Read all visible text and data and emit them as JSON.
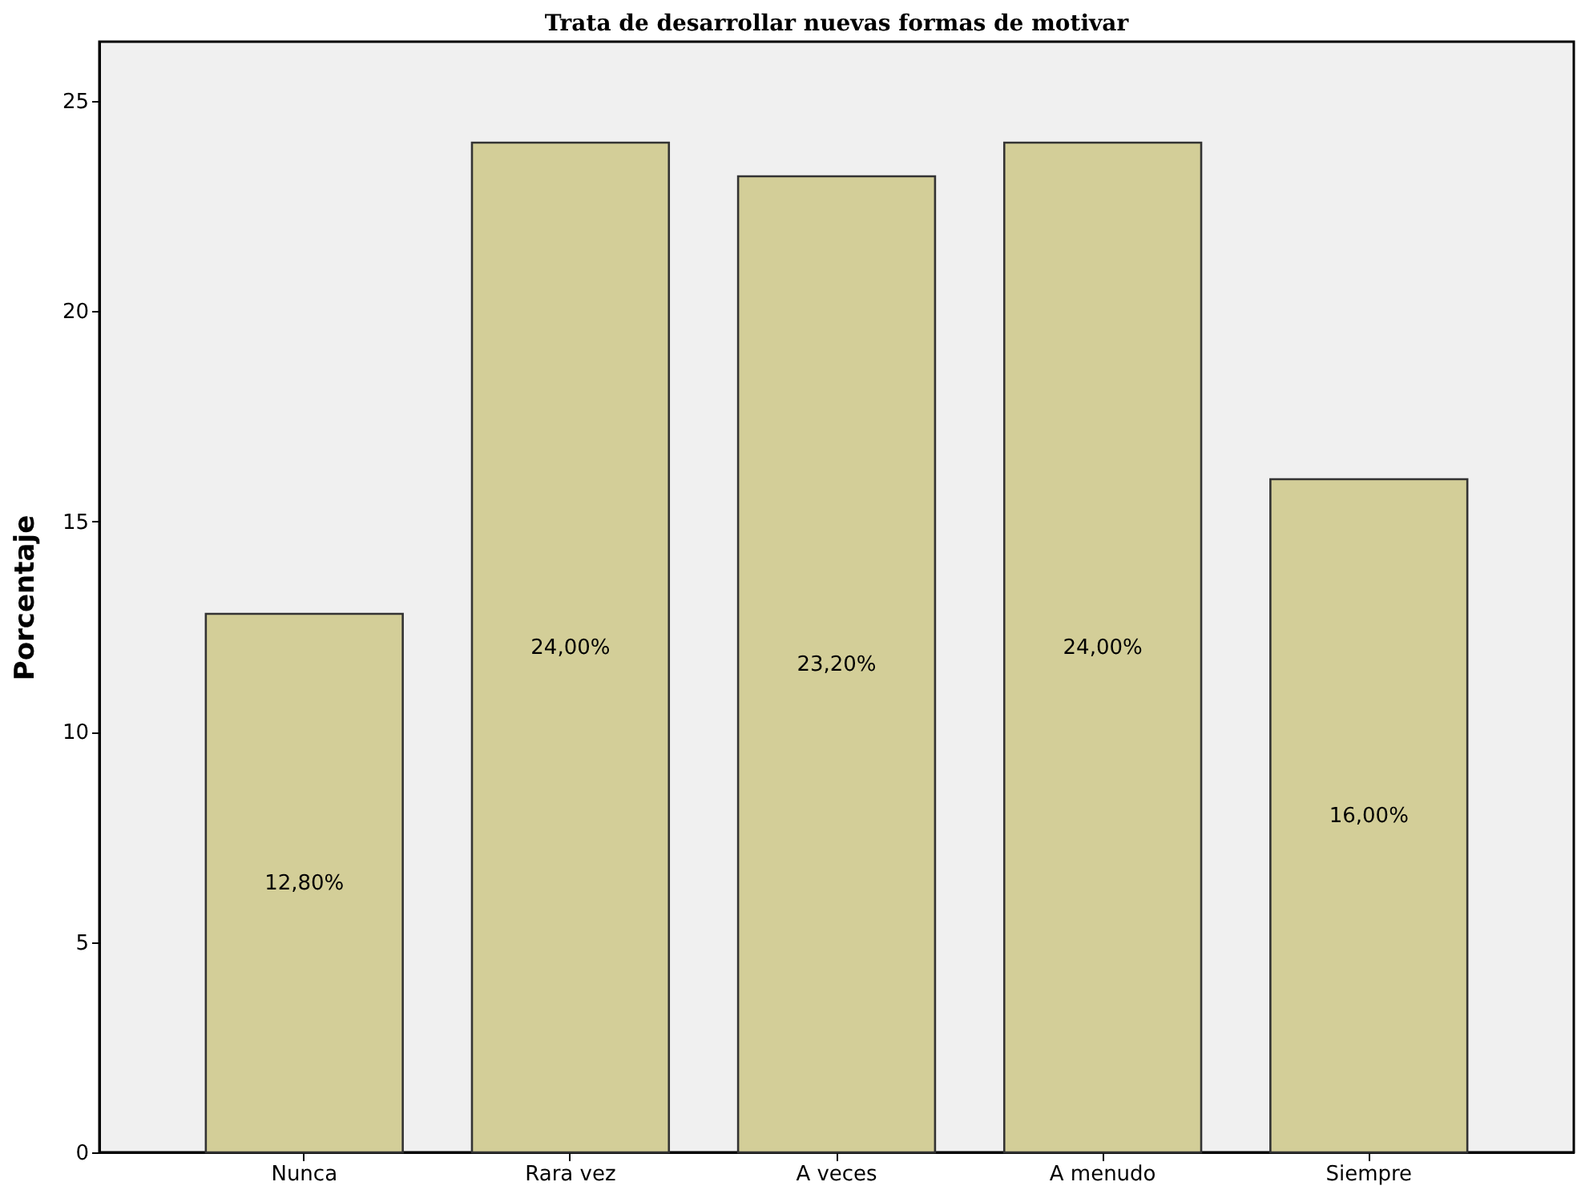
{
  "chart_data": {
    "type": "bar",
    "title": "Trata de desarrollar nuevas formas de motivar",
    "ylabel": "Porcentaje",
    "categories": [
      "Nunca",
      "Rara vez",
      "A veces",
      "A menudo",
      "Siempre"
    ],
    "values": [
      12.8,
      24.0,
      23.2,
      24.0,
      16.0
    ],
    "value_labels": [
      "12,80%",
      "24,00%",
      "23,20%",
      "24,00%",
      "16,00%"
    ],
    "color": "#d3ce98",
    "ylim": [
      0,
      26.4
    ],
    "yticks": [
      0,
      5,
      10,
      15,
      20,
      25
    ],
    "grid": false
  }
}
